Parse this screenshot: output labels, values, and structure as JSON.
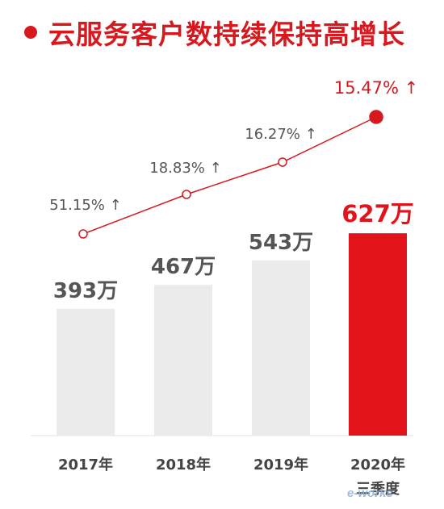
{
  "header": {
    "title": "云服务客户数持续保持高增长"
  },
  "colors": {
    "accent": "#d7191f",
    "bar_gray": "#ebebeb",
    "bar_highlight": "#e3131b",
    "value_text": "#555555",
    "growth_text": "#555555",
    "axis_text": "#444444",
    "line": "#d7191f"
  },
  "chart_data": {
    "type": "bar",
    "categories": [
      "2017年",
      "2018年",
      "2019年",
      "2020年"
    ],
    "category_sublabels": [
      "",
      "",
      "",
      "三季度"
    ],
    "values": [
      393,
      467,
      543,
      627
    ],
    "value_labels": [
      "393万",
      "467万",
      "543万",
      "627万"
    ],
    "highlight_index": 3,
    "growth": {
      "type": "line",
      "values": [
        51.15,
        18.83,
        16.27,
        15.47
      ],
      "labels": [
        "51.15% ↑",
        "18.83% ↑",
        "16.27% ↑",
        "15.47% ↑"
      ]
    },
    "title": "云服务客户数持续保持高增长",
    "xlabel": "",
    "ylabel": ""
  },
  "watermark": {
    "text": "e-works"
  }
}
